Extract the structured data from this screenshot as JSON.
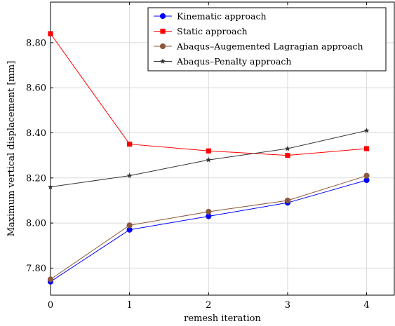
{
  "chart_data": {
    "type": "line",
    "title": "",
    "xlabel": "remesh iteration",
    "ylabel": "Maximum vertical displacement [mm]",
    "x": [
      0,
      1,
      2,
      3,
      4
    ],
    "xlim": [
      0,
      4.35
    ],
    "ylim": [
      7.68,
      8.98
    ],
    "xticks": [
      "0",
      "1",
      "2",
      "3",
      "4"
    ],
    "yticks": [
      7.8,
      8.0,
      8.2,
      8.4,
      8.6,
      8.8
    ],
    "ytick_labels": [
      "7.80",
      "8.00",
      "8.20",
      "8.40",
      "8.60",
      "8.80"
    ],
    "grid": true,
    "legend": "top-right",
    "series": [
      {
        "name": "Kinematic approach",
        "values": [
          7.74,
          7.97,
          8.03,
          8.09,
          8.19
        ],
        "color": "#0000ff",
        "marker": "circle"
      },
      {
        "name": "Static approach",
        "values": [
          8.84,
          8.35,
          8.32,
          8.3,
          8.33
        ],
        "color": "#ff0000",
        "marker": "square"
      },
      {
        "name": "Abaqus–Augemented Lagragian approach",
        "values": [
          7.75,
          7.99,
          8.05,
          8.1,
          8.21
        ],
        "color": "#8b5a3c",
        "marker": "circle"
      },
      {
        "name": "Abaqus–Penalty approach",
        "values": [
          8.16,
          8.21,
          8.28,
          8.33,
          8.41
        ],
        "color": "#333333",
        "marker": "star"
      }
    ]
  }
}
